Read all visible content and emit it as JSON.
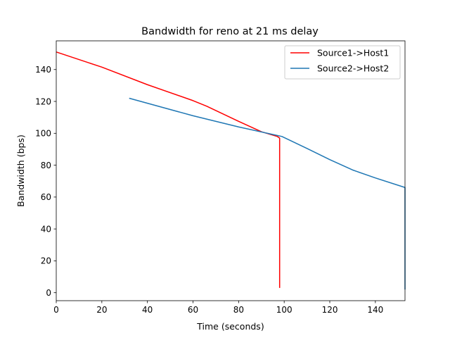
{
  "chart_data": {
    "type": "line",
    "title": "Bandwidth for reno at 21 ms delay",
    "xlabel": "Time (seconds)",
    "ylabel": "Bandwidth (bps)",
    "xlim": [
      0,
      153
    ],
    "ylim": [
      -5,
      158
    ],
    "xticks": [
      0,
      20,
      40,
      60,
      80,
      100,
      120,
      140
    ],
    "yticks": [
      0,
      20,
      40,
      60,
      80,
      100,
      120,
      140
    ],
    "grid": false,
    "legend_position": "top-right",
    "series": [
      {
        "name": "Source1->Host1",
        "color": "#ff0000",
        "x": [
          0,
          20,
          40,
          60,
          66,
          80,
          90,
          97,
          98,
          98
        ],
        "y": [
          151,
          141.5,
          130.5,
          120.5,
          117,
          107.5,
          101,
          98,
          97,
          3
        ]
      },
      {
        "name": "Source2->Host2",
        "color": "#1f77b4",
        "x": [
          32,
          60,
          80,
          99,
          110,
          120,
          130,
          140,
          153,
          153
        ],
        "y": [
          122,
          111,
          104,
          98,
          90.5,
          83.5,
          77,
          72,
          66,
          2
        ]
      }
    ]
  }
}
